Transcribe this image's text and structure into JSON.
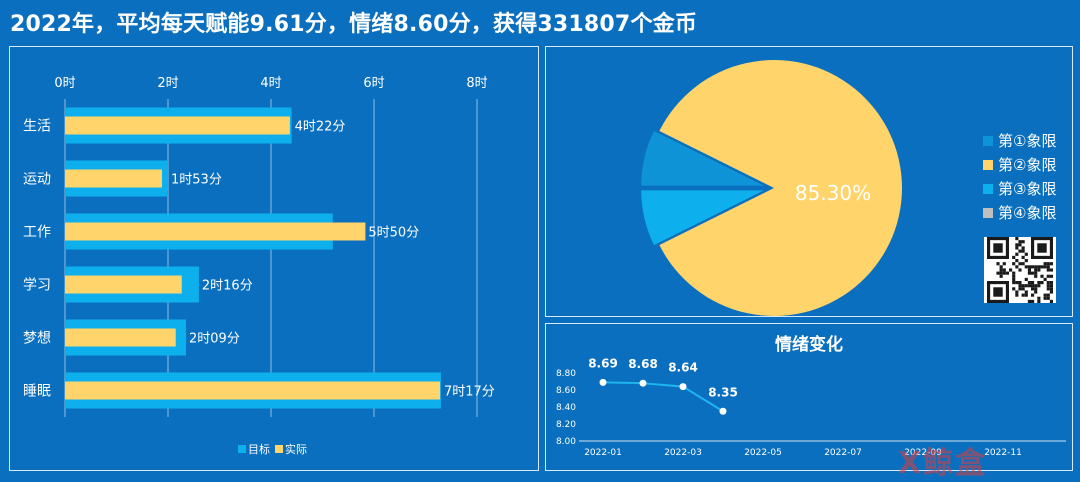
{
  "title": "2022年，平均每天赋能9.61分，情绪8.60分，获得331807个金币",
  "colors": {
    "background": "#0a6fbf",
    "target_bar": "#0db0ec",
    "actual_bar": "#ffd46a",
    "grid": "rgba(255,255,255,0.55)",
    "pie_q1": "#0e93d6",
    "pie_q2": "#ffd46a",
    "pie_q3": "#0db0ec",
    "pie_q4": "#bfbfbf",
    "line": "#1fb4ef"
  },
  "chart_data": [
    {
      "type": "bar",
      "orientation": "horizontal",
      "categories": [
        "生活",
        "运动",
        "工作",
        "学习",
        "梦想",
        "睡眠"
      ],
      "series": [
        {
          "name": "目标",
          "values": [
            4.4,
            2.0,
            5.2,
            2.6,
            2.35,
            7.3
          ]
        },
        {
          "name": "实际",
          "values": [
            4.367,
            1.883,
            5.833,
            2.267,
            2.15,
            7.283
          ]
        }
      ],
      "data_labels": [
        "4时22分",
        "1时53分",
        "5时50分",
        "2时16分",
        "2时09分",
        "7时17分"
      ],
      "xlim": [
        0,
        8
      ],
      "xticks": [
        0,
        2,
        4,
        6,
        8
      ],
      "xtick_labels": [
        "0时",
        "2时",
        "4时",
        "6时",
        "8时"
      ],
      "grid": true,
      "legend_position": "bottom"
    },
    {
      "type": "pie",
      "categories": [
        "第①象限",
        "第②象限",
        "第③象限",
        "第④象限"
      ],
      "values": [
        7.35,
        85.3,
        7.35,
        0
      ],
      "data_labels": [
        "85.30%"
      ],
      "legend_position": "right"
    },
    {
      "type": "line",
      "title": "情绪变化",
      "x": [
        "2022-01",
        "2022-02",
        "2022-03",
        "2022-04"
      ],
      "values": [
        8.69,
        8.68,
        8.64,
        8.35
      ],
      "data_labels": [
        "8.69",
        "8.68",
        "8.64",
        "8.35"
      ],
      "ylim": [
        8.0,
        8.8
      ],
      "yticks": [
        "8.00",
        "8.20",
        "8.40",
        "8.60",
        "8.80"
      ],
      "xtick_labels": [
        "2022-01",
        "2022-03",
        "2022-05",
        "2022-07",
        "2022-09",
        "2022-11"
      ],
      "grid": false
    }
  ],
  "watermark": "X鲸盒"
}
